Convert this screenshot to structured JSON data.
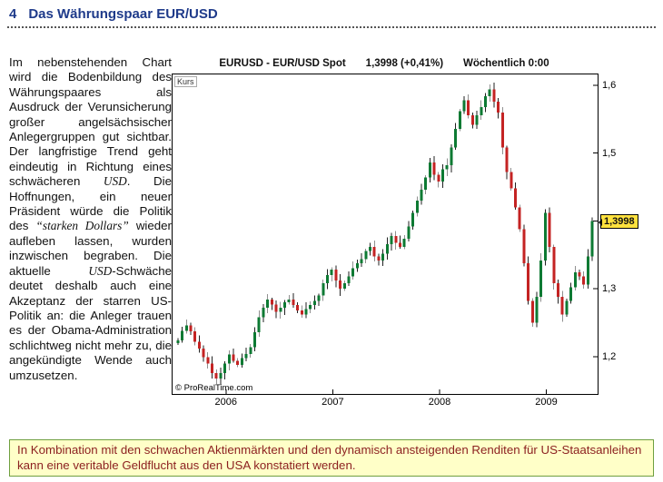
{
  "heading": {
    "number": "4",
    "title": "Das Währungspaar EUR/USD"
  },
  "paragraph": {
    "segments": [
      {
        "text": "Im nebenstehenden Chart wird die Bodenbildung des Währungspaares als Ausdruck der Verunsicherung großer angelsächsischer Anlegergruppen gut sichtbar. Der langfristige Trend geht eindeutig in Richtung eines schwächeren "
      },
      {
        "text": "USD",
        "italic": true
      },
      {
        "text": ". Die Hoffnungen, ein neuer Präsident würde die Politik des "
      },
      {
        "text": "“starken Dollars”",
        "italic": true
      },
      {
        "text": " wieder aufleben lassen, wurden inzwischen begraben. Die aktuelle "
      },
      {
        "text": "USD",
        "italic": true
      },
      {
        "text": "-Schwäche deutet deshalb auch eine Akzeptanz der starren US-Politik an: die Anleger trauen es der Obama-Administration schlichtweg nicht mehr zu, die angekündigte Wende auch umzusetzen."
      }
    ]
  },
  "chart": {
    "title": "EURUSD - EUR/USD Spot",
    "quote": "1,3998 (+0,41%)",
    "timeframe": "Wöchentlich 0:00",
    "kurs_label": "Kurs",
    "watermark": "© ProRealTime.com",
    "price_marker": "1,3998",
    "y_ticks": [
      "1,6",
      "1,5",
      "1,4",
      "1,3",
      "1,2"
    ],
    "x_ticks": [
      "2006",
      "2007",
      "2008",
      "2009"
    ]
  },
  "chart_data": {
    "type": "candlestick",
    "title": "EURUSD - EUR/USD Spot",
    "timeframe": "Wöchentlich",
    "pair": "EUR/USD",
    "last_price": 1.3998,
    "change_pct": "+0,41%",
    "grid": false,
    "xlim": [
      2005.5,
      2009.48
    ],
    "ylim": [
      1.145,
      1.616
    ],
    "y_tick_values": [
      1.6,
      1.5,
      1.4,
      1.3,
      1.2
    ],
    "x_tick_values": [
      2006,
      2007,
      2008,
      2009
    ],
    "x_start": 2005.55,
    "x_step": 0.04,
    "close": [
      1.224,
      1.238,
      1.246,
      1.237,
      1.222,
      1.212,
      1.199,
      1.19,
      1.176,
      1.168,
      1.176,
      1.19,
      1.203,
      1.194,
      1.188,
      1.198,
      1.204,
      1.214,
      1.236,
      1.258,
      1.272,
      1.284,
      1.277,
      1.266,
      1.272,
      1.28,
      1.284,
      1.276,
      1.268,
      1.262,
      1.27,
      1.276,
      1.282,
      1.29,
      1.308,
      1.32,
      1.328,
      1.312,
      1.3,
      1.308,
      1.318,
      1.33,
      1.338,
      1.344,
      1.356,
      1.362,
      1.348,
      1.342,
      1.352,
      1.366,
      1.378,
      1.368,
      1.362,
      1.374,
      1.392,
      1.412,
      1.43,
      1.446,
      1.464,
      1.486,
      1.468,
      1.458,
      1.476,
      1.482,
      1.508,
      1.536,
      1.562,
      1.578,
      1.556,
      1.542,
      1.556,
      1.568,
      1.584,
      1.594,
      1.576,
      1.56,
      1.508,
      1.472,
      1.448,
      1.42,
      1.388,
      1.338,
      1.282,
      1.25,
      1.288,
      1.342,
      1.412,
      1.362,
      1.308,
      1.288,
      1.262,
      1.282,
      1.302,
      1.324,
      1.318,
      1.306,
      1.348,
      1.3998
    ]
  },
  "note_box": {
    "text": "In Kombination mit den schwachen Aktienmärkten und den dynamisch ansteigenden Renditen für US-Staatsanleihen kann eine veritable Geldflucht aus den USA konstatiert werden."
  },
  "colors": {
    "heading": "#1e3a8a",
    "marker_bg": "#ffe23e",
    "note_bg": "#ffffc8",
    "note_border": "#6f9f3f",
    "note_text": "#8b1f1f",
    "candle_up": "#0d7a33",
    "candle_down": "#c42323",
    "wick": "#222222"
  }
}
